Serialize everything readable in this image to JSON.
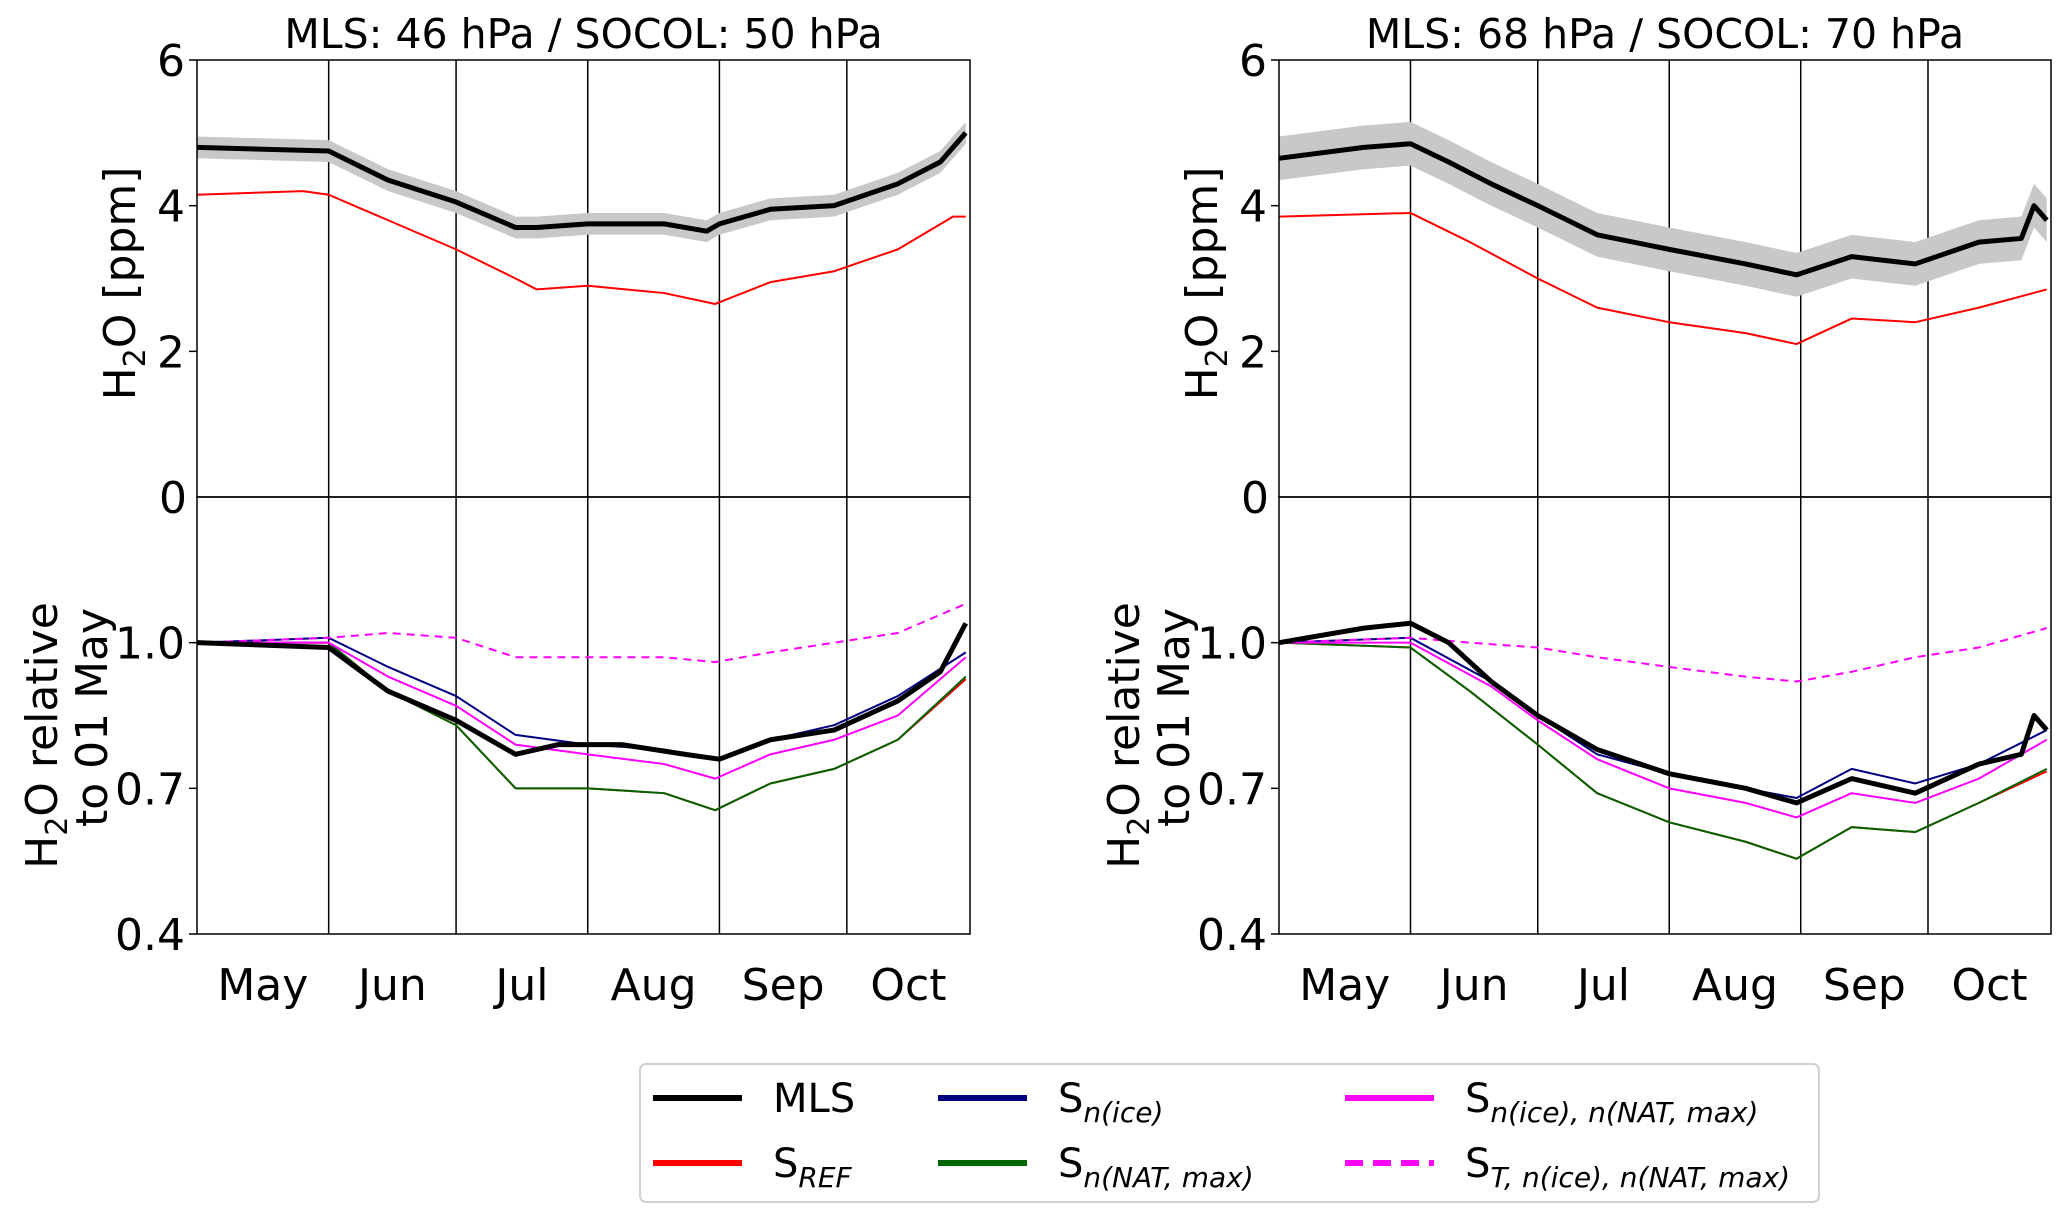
{
  "chart_data": [
    {
      "type": "line",
      "title": "MLS: 46 hPa  /  SOCOL: 50 hPa",
      "x_unit": "days since 01 May",
      "month_boundaries": [
        31,
        61,
        92,
        123,
        153
      ],
      "x_range": [
        0,
        182
      ],
      "month_labels": [
        "May",
        "Jun",
        "Jul",
        "Aug",
        "Sep",
        "Oct"
      ],
      "top": {
        "ylabel_main": "H",
        "ylabel_sub": "2",
        "ylabel_rest": "O [ppm]",
        "ylim": [
          0,
          6
        ],
        "yticks": [
          "0",
          "2",
          "4",
          "6"
        ],
        "series": [
          {
            "name": "MLS",
            "color": "#000000",
            "band": 0.15,
            "x": [
              0,
              31,
              45,
              61,
              75,
              80,
              92,
              110,
              120,
              123,
              135,
              150,
              165,
              175,
              181
            ],
            "y": [
              4.8,
              4.75,
              4.35,
              4.05,
              3.7,
              3.7,
              3.75,
              3.75,
              3.65,
              3.75,
              3.95,
              4.0,
              4.3,
              4.6,
              5.0
            ]
          },
          {
            "name": "S_REF",
            "color": "#ff0000",
            "x": [
              0,
              25,
              31,
              45,
              61,
              75,
              80,
              92,
              110,
              122,
              135,
              150,
              165,
              178,
              181
            ],
            "y": [
              4.15,
              4.2,
              4.15,
              3.8,
              3.4,
              3.0,
              2.85,
              2.9,
              2.8,
              2.65,
              2.95,
              3.1,
              3.4,
              3.85,
              3.85
            ]
          }
        ]
      },
      "bottom": {
        "ylabel_line1_main": "H",
        "ylabel_line1_sub": "2",
        "ylabel_line1_rest": "O relative",
        "ylabel_line2": "to 01 May",
        "ylim": [
          0.4,
          1.3
        ],
        "yticks": [
          "0.4",
          "0.7",
          "1.0"
        ],
        "series": [
          {
            "name": "S_REF",
            "color": "#ff0000",
            "x": [
              0,
              31,
              45,
              61,
              75,
              92,
              110,
              122,
              135,
              150,
              165,
              181
            ],
            "y": [
              1.0,
              1.0,
              0.9,
              0.83,
              0.7,
              0.7,
              0.69,
              0.655,
              0.71,
              0.74,
              0.8,
              0.925
            ]
          },
          {
            "name": "S_n(NAT,max)",
            "color": "#006400",
            "x": [
              0,
              31,
              45,
              61,
              75,
              92,
              110,
              122,
              135,
              150,
              165,
              181
            ],
            "y": [
              1.0,
              1.0,
              0.9,
              0.83,
              0.7,
              0.7,
              0.69,
              0.655,
              0.71,
              0.74,
              0.8,
              0.93
            ]
          },
          {
            "name": "S_n(ice)",
            "color": "#000080",
            "x": [
              0,
              31,
              45,
              61,
              75,
              92,
              110,
              122,
              135,
              150,
              165,
              181
            ],
            "y": [
              1.0,
              1.01,
              0.95,
              0.89,
              0.81,
              0.79,
              0.78,
              0.76,
              0.8,
              0.83,
              0.89,
              0.98
            ]
          },
          {
            "name": "S_n(ice),n(NAT,max)",
            "color": "#ff00ff",
            "x": [
              0,
              31,
              45,
              61,
              75,
              92,
              110,
              122,
              135,
              150,
              165,
              181
            ],
            "y": [
              1.0,
              1.0,
              0.93,
              0.87,
              0.79,
              0.77,
              0.75,
              0.72,
              0.77,
              0.8,
              0.85,
              0.97
            ]
          },
          {
            "name": "S_T,n(ice),n(NAT,max)",
            "color": "#ff00ff",
            "dashed": true,
            "x": [
              0,
              31,
              45,
              61,
              75,
              92,
              110,
              122,
              135,
              150,
              165,
              181
            ],
            "y": [
              1.0,
              1.01,
              1.02,
              1.01,
              0.97,
              0.97,
              0.97,
              0.96,
              0.98,
              1.0,
              1.02,
              1.08
            ]
          },
          {
            "name": "MLS",
            "color": "#000000",
            "x": [
              0,
              31,
              45,
              61,
              75,
              85,
              100,
              115,
              123,
              135,
              150,
              165,
              175,
              181
            ],
            "y": [
              1.0,
              0.99,
              0.9,
              0.84,
              0.77,
              0.79,
              0.79,
              0.77,
              0.76,
              0.8,
              0.82,
              0.88,
              0.94,
              1.04
            ]
          }
        ]
      }
    },
    {
      "type": "line",
      "title": "MLS: 68 hPa  /  SOCOL: 70 hPa",
      "x_unit": "days since 01 May",
      "month_boundaries": [
        31,
        61,
        92,
        123,
        153
      ],
      "x_range": [
        0,
        182
      ],
      "month_labels": [
        "May",
        "Jun",
        "Jul",
        "Aug",
        "Sep",
        "Oct"
      ],
      "top": {
        "ylabel_main": "H",
        "ylabel_sub": "2",
        "ylabel_rest": "O [ppm]",
        "ylim": [
          0,
          6
        ],
        "yticks": [
          "0",
          "2",
          "4",
          "6"
        ],
        "series": [
          {
            "name": "MLS",
            "color": "#000000",
            "band": 0.3,
            "x": [
              0,
              20,
              31,
              40,
              50,
              61,
              75,
              92,
              110,
              122,
              135,
              150,
              165,
              175,
              178,
              181
            ],
            "y": [
              4.65,
              4.8,
              4.85,
              4.6,
              4.3,
              4.0,
              3.6,
              3.4,
              3.2,
              3.05,
              3.3,
              3.2,
              3.5,
              3.55,
              4.0,
              3.8
            ]
          },
          {
            "name": "S_REF",
            "color": "#ff0000",
            "x": [
              0,
              31,
              45,
              61,
              75,
              92,
              110,
              122,
              135,
              150,
              165,
              181
            ],
            "y": [
              3.85,
              3.9,
              3.5,
              3.0,
              2.6,
              2.4,
              2.25,
              2.1,
              2.45,
              2.4,
              2.6,
              2.85
            ]
          }
        ]
      },
      "bottom": {
        "ylabel_line1_main": "H",
        "ylabel_line1_sub": "2",
        "ylabel_line1_rest": "O relative",
        "ylabel_line2": "to 01 May",
        "ylim": [
          0.4,
          1.3
        ],
        "yticks": [
          "0.4",
          "0.7",
          "1.0"
        ],
        "series": [
          {
            "name": "S_REF",
            "color": "#ff0000",
            "x": [
              0,
              31,
              45,
              61,
              75,
              92,
              110,
              122,
              135,
              150,
              165,
              181
            ],
            "y": [
              1.0,
              0.99,
              0.9,
              0.79,
              0.69,
              0.63,
              0.59,
              0.555,
              0.62,
              0.61,
              0.67,
              0.735
            ]
          },
          {
            "name": "S_n(NAT,max)",
            "color": "#006400",
            "x": [
              0,
              31,
              45,
              61,
              75,
              92,
              110,
              122,
              135,
              150,
              165,
              181
            ],
            "y": [
              1.0,
              0.99,
              0.9,
              0.79,
              0.69,
              0.63,
              0.59,
              0.555,
              0.62,
              0.61,
              0.67,
              0.74
            ]
          },
          {
            "name": "S_n(ice)",
            "color": "#000080",
            "x": [
              0,
              31,
              50,
              61,
              75,
              92,
              110,
              122,
              135,
              150,
              165,
              181
            ],
            "y": [
              1.0,
              1.01,
              0.92,
              0.85,
              0.77,
              0.73,
              0.7,
              0.68,
              0.74,
              0.71,
              0.75,
              0.82
            ]
          },
          {
            "name": "S_n(ice),n(NAT,max)",
            "color": "#ff00ff",
            "x": [
              0,
              31,
              50,
              61,
              75,
              92,
              110,
              122,
              135,
              150,
              165,
              181
            ],
            "y": [
              1.0,
              1.0,
              0.91,
              0.84,
              0.76,
              0.7,
              0.67,
              0.64,
              0.69,
              0.67,
              0.72,
              0.8
            ]
          },
          {
            "name": "S_T,n(ice),n(NAT,max)",
            "color": "#ff00ff",
            "dashed": true,
            "x": [
              0,
              31,
              45,
              61,
              75,
              92,
              110,
              122,
              135,
              150,
              165,
              181
            ],
            "y": [
              1.0,
              1.01,
              1.0,
              0.99,
              0.97,
              0.95,
              0.93,
              0.92,
              0.94,
              0.97,
              0.99,
              1.03
            ]
          },
          {
            "name": "MLS",
            "color": "#000000",
            "x": [
              0,
              20,
              31,
              40,
              50,
              61,
              75,
              92,
              110,
              122,
              135,
              150,
              165,
              175,
              178,
              181
            ],
            "y": [
              1.0,
              1.03,
              1.04,
              1.0,
              0.92,
              0.85,
              0.78,
              0.73,
              0.7,
              0.67,
              0.72,
              0.69,
              0.75,
              0.77,
              0.85,
              0.82
            ]
          }
        ]
      }
    }
  ],
  "legend": [
    {
      "base": "MLS",
      "sub": "",
      "color": "#000000",
      "dashed": false
    },
    {
      "base": "S",
      "sub": "REF",
      "color": "#ff0000",
      "dashed": false
    },
    {
      "base": "S",
      "sub": "n(ice)",
      "color": "#000080",
      "dashed": false
    },
    {
      "base": "S",
      "sub": "n(NAT, max)",
      "color": "#006400",
      "dashed": false
    },
    {
      "base": "S",
      "sub": "n(ice), n(NAT, max)",
      "color": "#ff00ff",
      "dashed": false
    },
    {
      "base": "S",
      "sub": "T, n(ice), n(NAT, max)",
      "color": "#ff00ff",
      "dashed": true
    }
  ]
}
